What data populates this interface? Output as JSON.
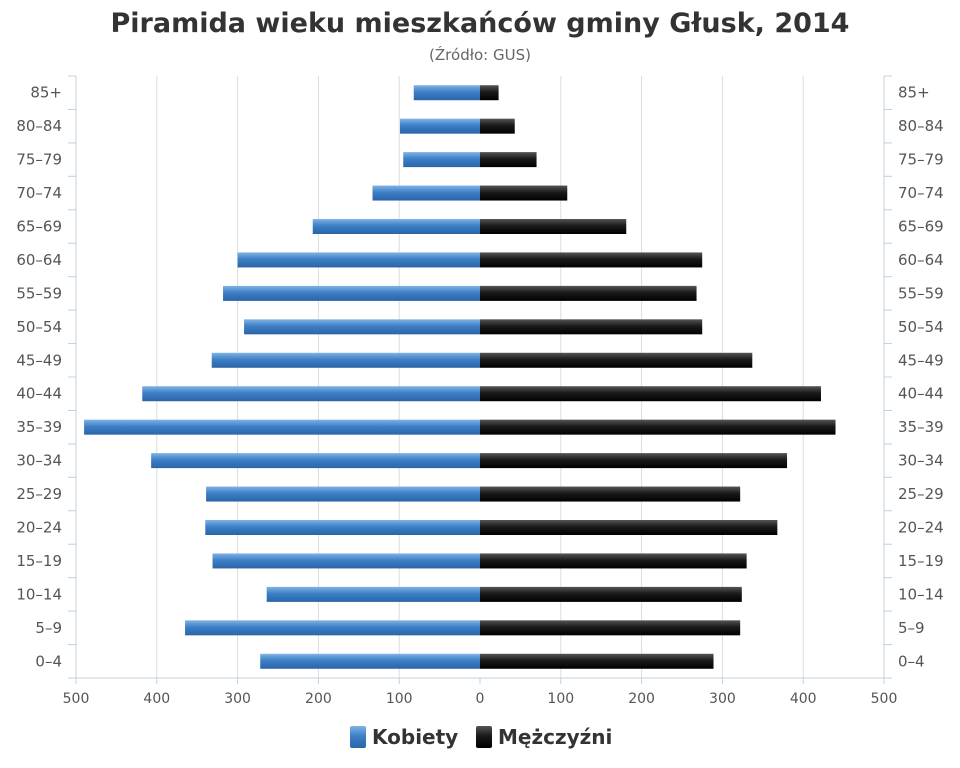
{
  "chart_data": {
    "type": "bar",
    "orientation": "horizontal-diverging",
    "title": "Piramida wieku mieszkańców gminy Głusk, 2014",
    "subtitle": "(Źródło: GUS)",
    "categories": [
      "0–4",
      "5–9",
      "10–14",
      "15–19",
      "20–24",
      "25–29",
      "30–34",
      "35–39",
      "40–44",
      "45–49",
      "50–54",
      "55–59",
      "60–64",
      "65–69",
      "70–74",
      "75–79",
      "80–84",
      "85+"
    ],
    "series": [
      {
        "name": "Kobiety",
        "color": "#4a8fd4",
        "side": "left",
        "values": [
          272,
          365,
          264,
          331,
          340,
          339,
          407,
          490,
          418,
          332,
          292,
          318,
          300,
          207,
          133,
          95,
          99,
          82
        ]
      },
      {
        "name": "Mężczyźni",
        "color": "#111111",
        "side": "right",
        "values": [
          289,
          322,
          324,
          330,
          368,
          322,
          380,
          440,
          422,
          337,
          275,
          268,
          275,
          181,
          108,
          70,
          43,
          23
        ]
      }
    ],
    "xlim": [
      -500,
      500
    ],
    "xticks": [
      {
        "value": -500,
        "label": "500"
      },
      {
        "value": -400,
        "label": "400"
      },
      {
        "value": -300,
        "label": "300"
      },
      {
        "value": -200,
        "label": "200"
      },
      {
        "value": -100,
        "label": "100"
      },
      {
        "value": 0,
        "label": "0"
      },
      {
        "value": 100,
        "label": "100"
      },
      {
        "value": 200,
        "label": "200"
      },
      {
        "value": 300,
        "label": "300"
      },
      {
        "value": 400,
        "label": "400"
      },
      {
        "value": 500,
        "label": "500"
      }
    ],
    "grid": true,
    "legend": "bottom-center"
  }
}
